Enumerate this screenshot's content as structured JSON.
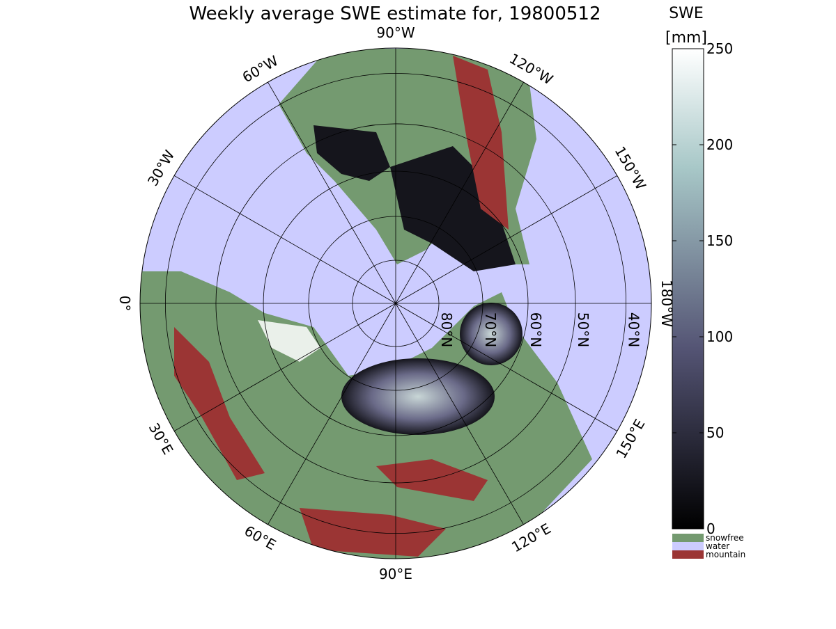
{
  "title": "Weekly average SWE estimate for, 19800512",
  "map": {
    "lon_ticks": [
      {
        "value": -90,
        "label": "90°W"
      },
      {
        "value": -120,
        "label": "120°W"
      },
      {
        "value": -150,
        "label": "150°W"
      },
      {
        "value": 180,
        "label": "180°W"
      },
      {
        "value": 150,
        "label": "150°E"
      },
      {
        "value": 120,
        "label": "120°E"
      },
      {
        "value": 90,
        "label": "90°E"
      },
      {
        "value": 60,
        "label": "60°E"
      },
      {
        "value": 30,
        "label": "30°E"
      },
      {
        "value": 0,
        "label": "0°"
      },
      {
        "value": -30,
        "label": "30°W"
      },
      {
        "value": -60,
        "label": "60°W"
      }
    ],
    "lat_ticks": [
      {
        "value": 80,
        "label": "80°N"
      },
      {
        "value": 70,
        "label": "70°N"
      },
      {
        "value": 60,
        "label": "60°N"
      },
      {
        "value": 50,
        "label": "50°N"
      },
      {
        "value": 40,
        "label": "40°N"
      }
    ]
  },
  "colorbar": {
    "title": "SWE",
    "unit": "[mm]",
    "lim": [
      0,
      250
    ],
    "ticks": [
      0,
      50,
      100,
      150,
      200,
      250
    ]
  },
  "legend": [
    {
      "name": "snowfree",
      "color": "#749a70"
    },
    {
      "name": "water",
      "color": "#ccccff"
    },
    {
      "name": "mountain",
      "color": "#9b3534"
    }
  ]
}
